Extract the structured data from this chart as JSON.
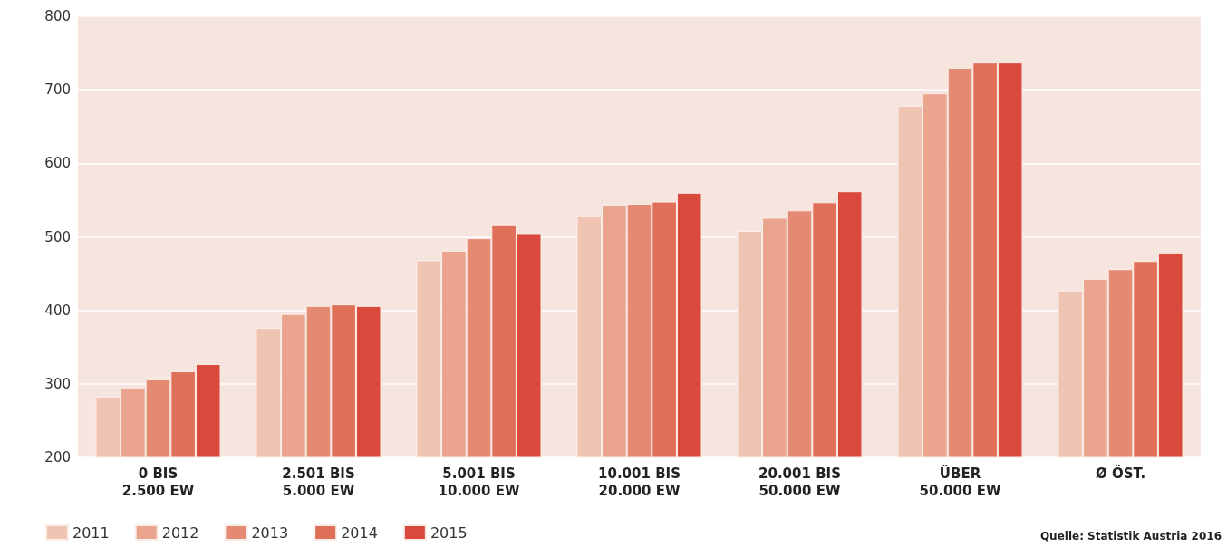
{
  "chart_data": {
    "type": "bar",
    "categories": [
      "0 BIS\n2.500 EW",
      "2.501 BIS\n5.000 EW",
      "5.001 BIS\n10.000 EW",
      "10.001 BIS\n20.000 EW",
      "20.001 BIS\n50.000 EW",
      "ÜBER\n50.000 EW",
      "Ø ÖST."
    ],
    "series": [
      {
        "name": "2011",
        "color": "#f0c4b2",
        "values": [
          282,
          376,
          468,
          528,
          508,
          678,
          427
        ]
      },
      {
        "name": "2012",
        "color": "#eaa38c",
        "values": [
          294,
          395,
          481,
          543,
          526,
          695,
          443
        ]
      },
      {
        "name": "2013",
        "color": "#e48a72",
        "values": [
          306,
          406,
          498,
          545,
          536,
          730,
          456
        ]
      },
      {
        "name": "2014",
        "color": "#df6f58",
        "values": [
          317,
          408,
          517,
          548,
          547,
          737,
          467
        ]
      },
      {
        "name": "2015",
        "color": "#d94a3c",
        "values": [
          327,
          406,
          505,
          560,
          562,
          737,
          478
        ]
      }
    ],
    "ylim": [
      200,
      800
    ],
    "yticks": [
      200,
      300,
      400,
      500,
      600,
      700,
      800
    ],
    "grid": "y",
    "legend": "bottom left",
    "annotations": [
      "Quelle: Statistik Austria 2016"
    ]
  }
}
